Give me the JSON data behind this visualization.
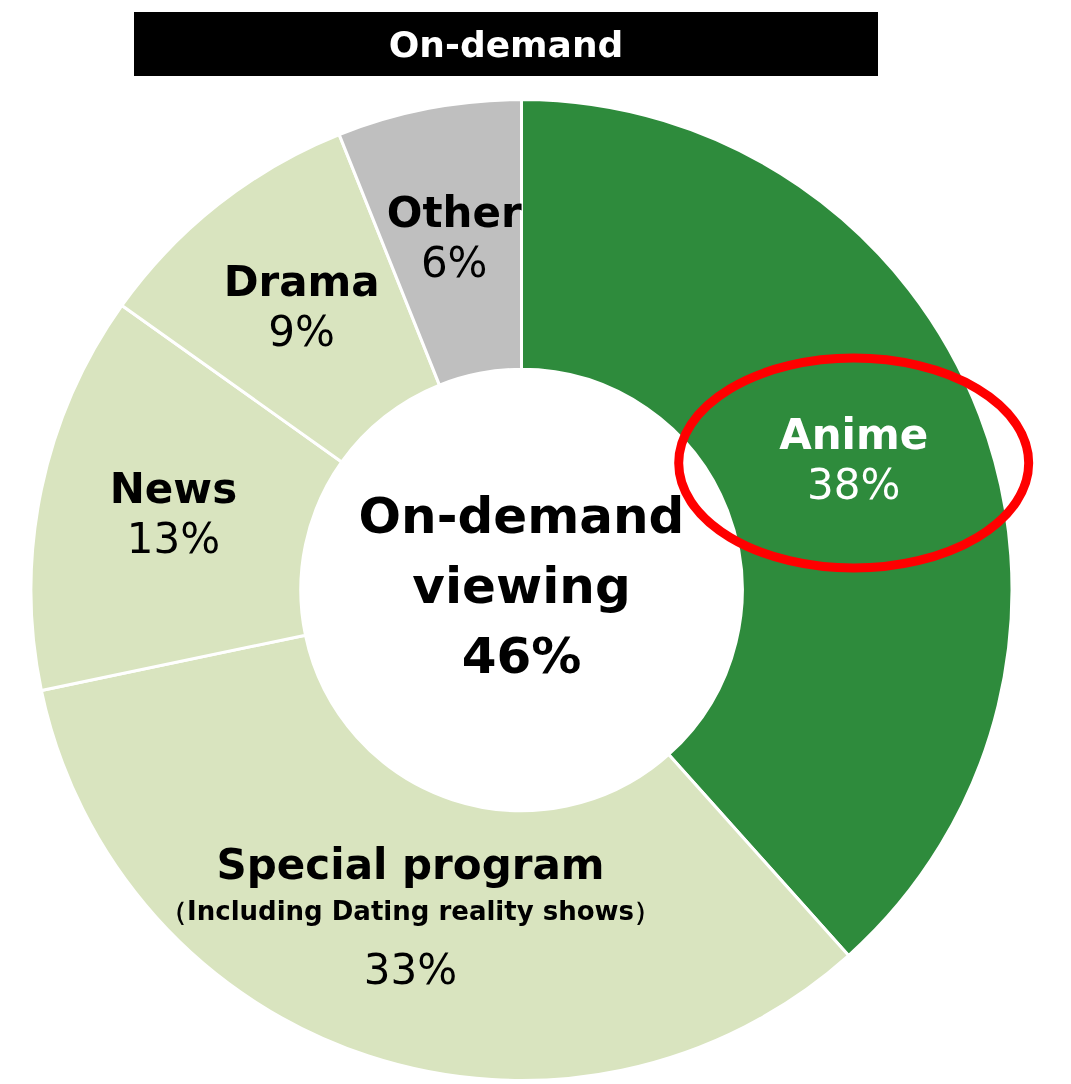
{
  "chart_data": {
    "type": "donut",
    "title": "On-demand",
    "categories": [
      "Anime",
      "Special program\n（Including Dating reality shows）",
      "News",
      "Drama",
      "Other"
    ],
    "values": [
      38,
      33,
      13,
      9,
      6
    ],
    "colors": [
      "#2e8b3c",
      "#d9e4bf",
      "#d9e4bf",
      "#d9e4bf",
      "#bfbfbf"
    ],
    "value_labels": [
      "38%",
      "33%",
      "13%",
      "9%",
      "6%"
    ],
    "annotations": [
      "On-demand\nviewing\n46%"
    ],
    "legend": false
  }
}
